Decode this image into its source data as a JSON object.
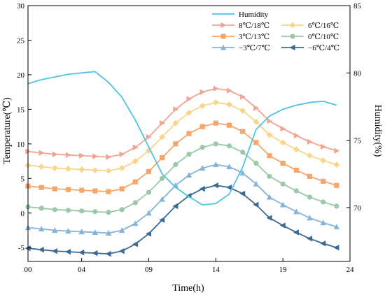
{
  "chart_data": {
    "type": "line",
    "xlabel": "Time(h)",
    "ylabel_left": "Temperature(℃)",
    "ylabel_right": "Humidity(%)",
    "x_ticks": [
      "00",
      "04",
      "09",
      "14",
      "19",
      "24"
    ],
    "x_tick_values": [
      0,
      4,
      9,
      14,
      19,
      24
    ],
    "xlim": [
      0,
      24
    ],
    "ylim_left": [
      -7,
      30
    ],
    "y_ticks_left": [
      -5,
      0,
      5,
      10,
      15,
      20,
      25,
      30
    ],
    "ylim_right": [
      66,
      85
    ],
    "y_ticks_right": [
      70,
      75,
      80,
      85
    ],
    "legend_position": "top-right",
    "grid": false,
    "humidity": {
      "name": "Humidity",
      "color": "#4fc3e3",
      "axis": "right",
      "x": [
        0,
        1,
        2,
        3,
        4,
        5,
        6,
        7,
        8,
        9,
        10,
        11,
        12,
        13,
        14,
        15,
        16,
        17,
        18,
        19,
        20,
        21,
        22,
        23
      ],
      "y": [
        79.2,
        79.5,
        79.7,
        79.9,
        80.0,
        80.1,
        79.3,
        78.2,
        76.5,
        74.5,
        72.5,
        71.5,
        70.8,
        70.2,
        70.3,
        71.0,
        73.0,
        75.8,
        76.8,
        77.3,
        77.6,
        77.8,
        77.9,
        77.6
      ]
    },
    "x": [
      0,
      1,
      2,
      3,
      4,
      5,
      6,
      7,
      8,
      9,
      10,
      11,
      12,
      13,
      14,
      15,
      16,
      17,
      18,
      19,
      20,
      21,
      22,
      23
    ],
    "series": [
      {
        "name": "8℃/18℃",
        "color": "#f2a593",
        "marker": "triangle-right",
        "values": [
          8.9,
          8.7,
          8.5,
          8.4,
          8.3,
          8.2,
          8.1,
          8.5,
          9.5,
          11.0,
          13.0,
          15.0,
          16.5,
          17.5,
          18.0,
          17.7,
          16.8,
          15.2,
          13.3,
          12.2,
          11.2,
          10.3,
          9.6,
          9.0
        ]
      },
      {
        "name": "6℃/16℃",
        "color": "#f9d58a",
        "marker": "diamond",
        "values": [
          6.9,
          6.7,
          6.5,
          6.4,
          6.3,
          6.2,
          6.1,
          6.5,
          7.5,
          9.0,
          11.0,
          13.0,
          14.5,
          15.5,
          16.0,
          15.7,
          14.8,
          13.2,
          11.3,
          10.2,
          9.2,
          8.3,
          7.6,
          7.0
        ]
      },
      {
        "name": "3℃/13℃",
        "color": "#f5a66a",
        "marker": "square",
        "values": [
          3.9,
          3.7,
          3.5,
          3.4,
          3.3,
          3.2,
          3.1,
          3.5,
          4.5,
          6.0,
          8.0,
          10.0,
          11.5,
          12.5,
          13.0,
          12.7,
          11.8,
          10.2,
          8.3,
          7.2,
          6.2,
          5.3,
          4.6,
          4.0
        ]
      },
      {
        "name": "0℃/10℃",
        "color": "#9bc8a8",
        "marker": "circle",
        "values": [
          0.9,
          0.7,
          0.5,
          0.4,
          0.3,
          0.2,
          0.1,
          0.5,
          1.5,
          3.0,
          5.0,
          7.0,
          8.5,
          9.5,
          10.0,
          9.7,
          8.8,
          7.2,
          5.3,
          4.2,
          3.2,
          2.3,
          1.6,
          1.0
        ]
      },
      {
        "name": "−3℃/7℃",
        "color": "#86b3d9",
        "marker": "triangle-up",
        "values": [
          -2.1,
          -2.3,
          -2.5,
          -2.6,
          -2.7,
          -2.8,
          -2.9,
          -2.5,
          -1.5,
          0.0,
          2.0,
          4.0,
          5.5,
          6.5,
          7.0,
          6.7,
          5.8,
          4.2,
          2.3,
          1.2,
          0.2,
          -0.7,
          -1.4,
          -2.0
        ]
      },
      {
        "name": "−6℃/4℃",
        "color": "#3b6a94",
        "marker": "triangle-left",
        "values": [
          -5.1,
          -5.3,
          -5.5,
          -5.6,
          -5.7,
          -5.8,
          -5.9,
          -5.5,
          -4.5,
          -3.0,
          -1.0,
          1.0,
          2.5,
          3.5,
          4.0,
          3.7,
          2.8,
          1.2,
          -0.7,
          -1.8,
          -2.8,
          -3.7,
          -4.4,
          -5.0
        ]
      }
    ]
  }
}
